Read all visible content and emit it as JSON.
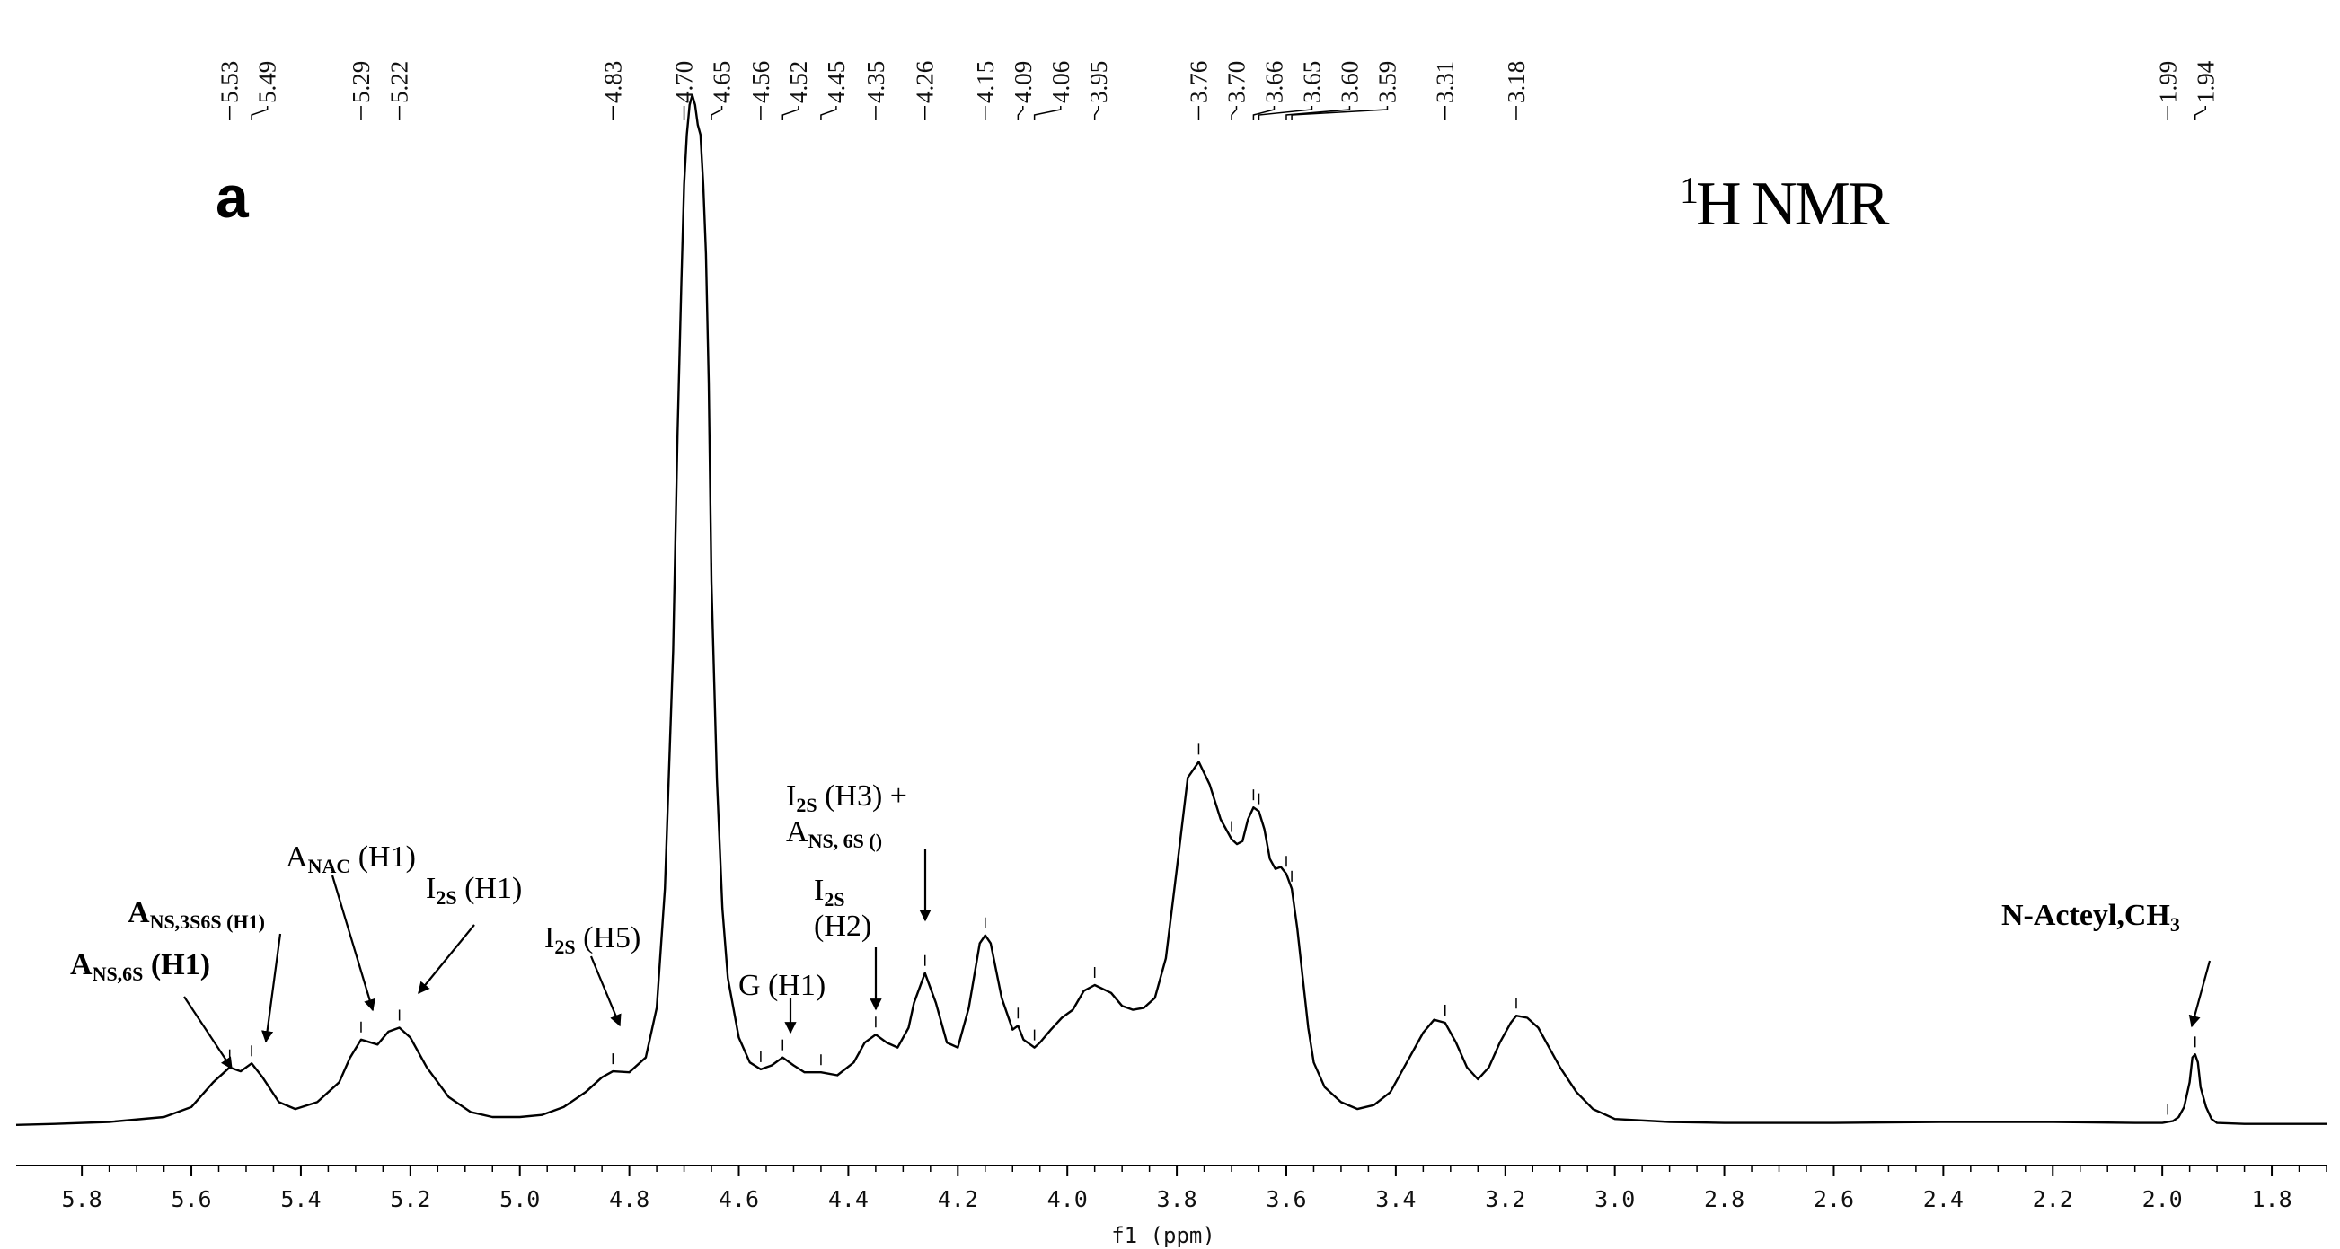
{
  "chart_data": {
    "type": "line",
    "panel_label": "a",
    "title_sup": "1",
    "title": "H NMR",
    "xlabel": "f1 (ppm)",
    "xlim": [
      5.92,
      1.7
    ],
    "x_reversed": true,
    "ticks": [
      "5.8",
      "5.6",
      "5.4",
      "5.2",
      "5.0",
      "4.8",
      "4.6",
      "4.4",
      "4.2",
      "4.0",
      "3.8",
      "3.6",
      "3.4",
      "3.2",
      "3.0",
      "2.8",
      "2.6",
      "2.4",
      "2.2",
      "2.0",
      "1.8"
    ],
    "peak_labels": [
      "5.53",
      "5.49",
      "5.29",
      "5.22",
      "4.83",
      "4.70",
      "4.65",
      "4.56",
      "4.52",
      "4.45",
      "4.35",
      "4.26",
      "4.15",
      "4.09",
      "4.06",
      "3.95",
      "3.76",
      "3.70",
      "3.66",
      "3.65",
      "3.60",
      "3.59",
      "3.31",
      "3.18",
      "1.99",
      "1.94"
    ],
    "series": [
      {
        "color": "#000000",
        "x": [
          5.92,
          5.85,
          5.75,
          5.65,
          5.6,
          5.56,
          5.53,
          5.51,
          5.49,
          5.47,
          5.44,
          5.41,
          5.37,
          5.33,
          5.31,
          5.29,
          5.26,
          5.24,
          5.22,
          5.2,
          5.17,
          5.13,
          5.09,
          5.05,
          5.0,
          4.96,
          4.92,
          4.88,
          4.85,
          4.83,
          4.8,
          4.77,
          4.75,
          4.735,
          4.72,
          4.712,
          4.705,
          4.7,
          4.695,
          4.69,
          4.685,
          4.68,
          4.675,
          4.67,
          4.665,
          4.66,
          4.655,
          4.65,
          4.64,
          4.63,
          4.62,
          4.6,
          4.58,
          4.56,
          4.54,
          4.52,
          4.5,
          4.48,
          4.45,
          4.42,
          4.39,
          4.37,
          4.35,
          4.33,
          4.31,
          4.29,
          4.28,
          4.26,
          4.24,
          4.22,
          4.2,
          4.18,
          4.16,
          4.15,
          4.14,
          4.12,
          4.1,
          4.09,
          4.08,
          4.07,
          4.06,
          4.05,
          4.03,
          4.01,
          3.99,
          3.97,
          3.95,
          3.92,
          3.9,
          3.88,
          3.86,
          3.84,
          3.82,
          3.8,
          3.78,
          3.76,
          3.74,
          3.72,
          3.7,
          3.69,
          3.68,
          3.67,
          3.66,
          3.65,
          3.64,
          3.63,
          3.62,
          3.61,
          3.6,
          3.59,
          3.58,
          3.57,
          3.56,
          3.55,
          3.53,
          3.5,
          3.47,
          3.44,
          3.41,
          3.38,
          3.35,
          3.33,
          3.31,
          3.29,
          3.27,
          3.25,
          3.23,
          3.21,
          3.19,
          3.18,
          3.16,
          3.14,
          3.12,
          3.1,
          3.07,
          3.04,
          3.0,
          2.9,
          2.8,
          2.6,
          2.4,
          2.2,
          2.05,
          2.0,
          1.99,
          1.98,
          1.97,
          1.96,
          1.95,
          1.945,
          1.94,
          1.935,
          1.93,
          1.92,
          1.91,
          1.9,
          1.85,
          1.8,
          1.75,
          1.7
        ],
        "y": [
          0.002,
          0.003,
          0.005,
          0.01,
          0.02,
          0.045,
          0.06,
          0.056,
          0.064,
          0.05,
          0.025,
          0.018,
          0.025,
          0.045,
          0.07,
          0.088,
          0.083,
          0.096,
          0.1,
          0.09,
          0.06,
          0.03,
          0.015,
          0.01,
          0.01,
          0.012,
          0.02,
          0.035,
          0.05,
          0.056,
          0.055,
          0.07,
          0.12,
          0.24,
          0.48,
          0.7,
          0.85,
          0.95,
          1.0,
          1.03,
          1.04,
          1.03,
          1.01,
          1.0,
          0.95,
          0.88,
          0.75,
          0.55,
          0.35,
          0.22,
          0.15,
          0.09,
          0.065,
          0.058,
          0.062,
          0.07,
          0.062,
          0.055,
          0.055,
          0.052,
          0.065,
          0.085,
          0.093,
          0.085,
          0.08,
          0.1,
          0.125,
          0.155,
          0.125,
          0.085,
          0.08,
          0.12,
          0.185,
          0.193,
          0.185,
          0.13,
          0.098,
          0.102,
          0.088,
          0.084,
          0.08,
          0.085,
          0.098,
          0.11,
          0.118,
          0.137,
          0.143,
          0.135,
          0.122,
          0.118,
          0.12,
          0.13,
          0.17,
          0.26,
          0.352,
          0.368,
          0.345,
          0.31,
          0.29,
          0.285,
          0.288,
          0.31,
          0.322,
          0.318,
          0.3,
          0.27,
          0.26,
          0.262,
          0.255,
          0.24,
          0.2,
          0.15,
          0.1,
          0.065,
          0.04,
          0.025,
          0.018,
          0.022,
          0.035,
          0.065,
          0.095,
          0.108,
          0.105,
          0.085,
          0.06,
          0.048,
          0.06,
          0.085,
          0.105,
          0.112,
          0.11,
          0.1,
          0.08,
          0.06,
          0.035,
          0.018,
          0.008,
          0.005,
          0.004,
          0.004,
          0.005,
          0.005,
          0.004,
          0.004,
          0.005,
          0.006,
          0.01,
          0.02,
          0.045,
          0.07,
          0.073,
          0.065,
          0.04,
          0.02,
          0.008,
          0.004,
          0.003,
          0.003,
          0.003,
          0.003
        ]
      }
    ],
    "annotations": [
      {
        "text": "A",
        "sub": "NS,6S",
        "after": " (H1)",
        "bold": true
      },
      {
        "text": "A",
        "sub": "NS,3S6S (H1)",
        "after": "",
        "bold": true
      },
      {
        "text": "A",
        "sub": "NAC",
        "after": " (H1)",
        "bold": false
      },
      {
        "text": "I",
        "sub": "2S",
        "after": " (H1)",
        "bold": false
      },
      {
        "text": "I",
        "sub": "2S",
        "after": " (H5)",
        "bold": false
      },
      {
        "text": "G (H1)",
        "sub": "",
        "after": "",
        "bold": false
      },
      {
        "text": "I",
        "sub": "2S",
        "after": "",
        "line2": "(H2)",
        "bold": false
      },
      {
        "text": "I",
        "sub": "2S",
        "after": " (H3) +",
        "line2_text": "A",
        "line2_sub": "NS, 6S ()",
        "bold": false
      },
      {
        "text": "N-Acteyl,CH",
        "sub": "3",
        "after": "",
        "bold": true
      }
    ]
  }
}
